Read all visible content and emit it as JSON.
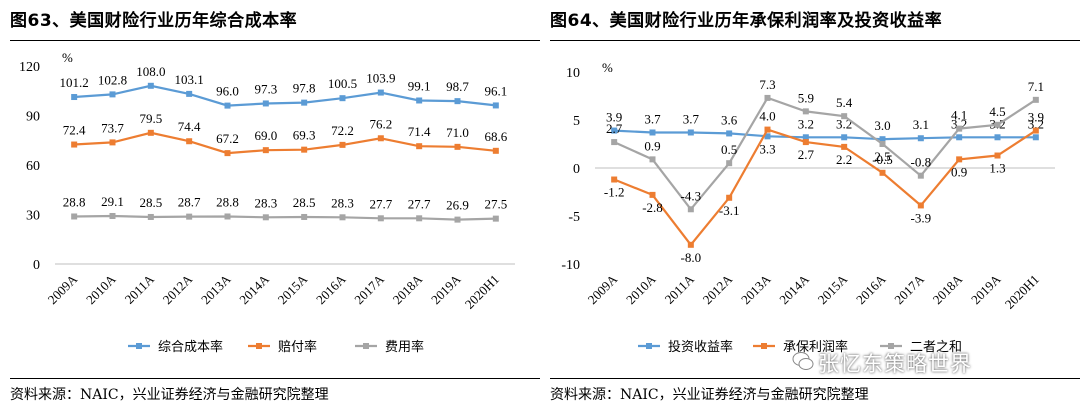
{
  "left": {
    "title": "图63、美国财险行业历年综合成本率",
    "source": "资料来源：NAIC，兴业证券经济与金融研究院整理"
  },
  "right": {
    "title": "图64、美国财险行业历年承保利润率及投资收益率",
    "source": "资料来源：NAIC，兴业证券经济与金融研究院整理"
  },
  "watermark": "张忆东策略世界",
  "chart_data": [
    {
      "type": "line",
      "unit": "%",
      "categories": [
        "2009A",
        "2010A",
        "2011A",
        "2012A",
        "2013A",
        "2014A",
        "2015A",
        "2016A",
        "2017A",
        "2018A",
        "2019A",
        "2020H1"
      ],
      "ylim": [
        0,
        120
      ],
      "yticks": [
        0,
        30,
        60,
        90,
        120
      ],
      "legend_position": "bottom",
      "series": [
        {
          "name": "综合成本率",
          "color": "#5B9BD5",
          "values": [
            101.2,
            102.8,
            108.0,
            103.1,
            96.0,
            97.3,
            97.8,
            100.5,
            103.9,
            99.1,
            98.7,
            96.1
          ],
          "labels": [
            "101.2",
            "102.8",
            "108.0",
            "103.1",
            "96.0",
            "97.3",
            "97.8",
            "100.5",
            "103.9",
            "99.1",
            "98.7",
            "96.1"
          ]
        },
        {
          "name": "赔付率",
          "color": "#ED7D31",
          "values": [
            72.4,
            73.7,
            79.5,
            74.4,
            67.2,
            69.0,
            69.3,
            72.2,
            76.2,
            71.4,
            71.0,
            68.6
          ],
          "labels": [
            "72.4",
            "73.7",
            "79.5",
            "74.4",
            "67.2",
            "69.0",
            "69.3",
            "72.2",
            "76.2",
            "71.4",
            "71.0",
            "68.6"
          ]
        },
        {
          "name": "费用率",
          "color": "#A5A5A5",
          "values": [
            28.8,
            29.1,
            28.5,
            28.7,
            28.8,
            28.3,
            28.5,
            28.3,
            27.7,
            27.7,
            26.9,
            27.5
          ],
          "labels": [
            "28.8",
            "29.1",
            "28.5",
            "28.7",
            "28.8",
            "28.3",
            "28.5",
            "28.3",
            "27.7",
            "27.7",
            "26.9",
            "27.5"
          ]
        }
      ]
    },
    {
      "type": "line",
      "unit": "%",
      "categories": [
        "2009A",
        "2010A",
        "2011A",
        "2012A",
        "2013A",
        "2014A",
        "2015A",
        "2016A",
        "2017A",
        "2018A",
        "2019A",
        "2020H1"
      ],
      "ylim": [
        -10,
        10
      ],
      "yticks": [
        -10,
        -5,
        0,
        5,
        10
      ],
      "legend_position": "bottom",
      "series": [
        {
          "name": "投资收益率",
          "color": "#5B9BD5",
          "values": [
            3.9,
            3.7,
            3.7,
            3.6,
            3.3,
            3.2,
            3.2,
            3.0,
            3.1,
            3.2,
            3.2,
            3.2
          ],
          "labels": [
            "3.9",
            "3.7",
            "3.7",
            "3.6",
            "3.3",
            "3.2",
            "3.2",
            "3.0",
            "3.1",
            "3.2",
            "3.2",
            "3.2"
          ]
        },
        {
          "name": "承保利润率",
          "color": "#ED7D31",
          "values": [
            -1.2,
            -2.8,
            -8.0,
            -3.1,
            4.0,
            2.7,
            2.2,
            -0.5,
            -3.9,
            0.9,
            1.3,
            3.9
          ],
          "labels": [
            "-1.2",
            "-2.8",
            "-8.0",
            "-3.1",
            "4.0",
            "2.7",
            "2.2",
            "-0.5",
            "-3.9",
            "0.9",
            "1.3",
            "3.9"
          ]
        },
        {
          "name": "二者之和",
          "color": "#A5A5A5",
          "values": [
            2.7,
            0.9,
            -4.3,
            0.5,
            7.3,
            5.9,
            5.4,
            2.5,
            -0.8,
            4.1,
            4.5,
            7.1
          ],
          "labels": [
            "2.7",
            "0.9",
            "-4.3",
            "0.5",
            "7.3",
            "5.9",
            "5.4",
            "2.5",
            "-0.8",
            "4.1",
            "4.5",
            "7.1"
          ]
        }
      ]
    }
  ]
}
